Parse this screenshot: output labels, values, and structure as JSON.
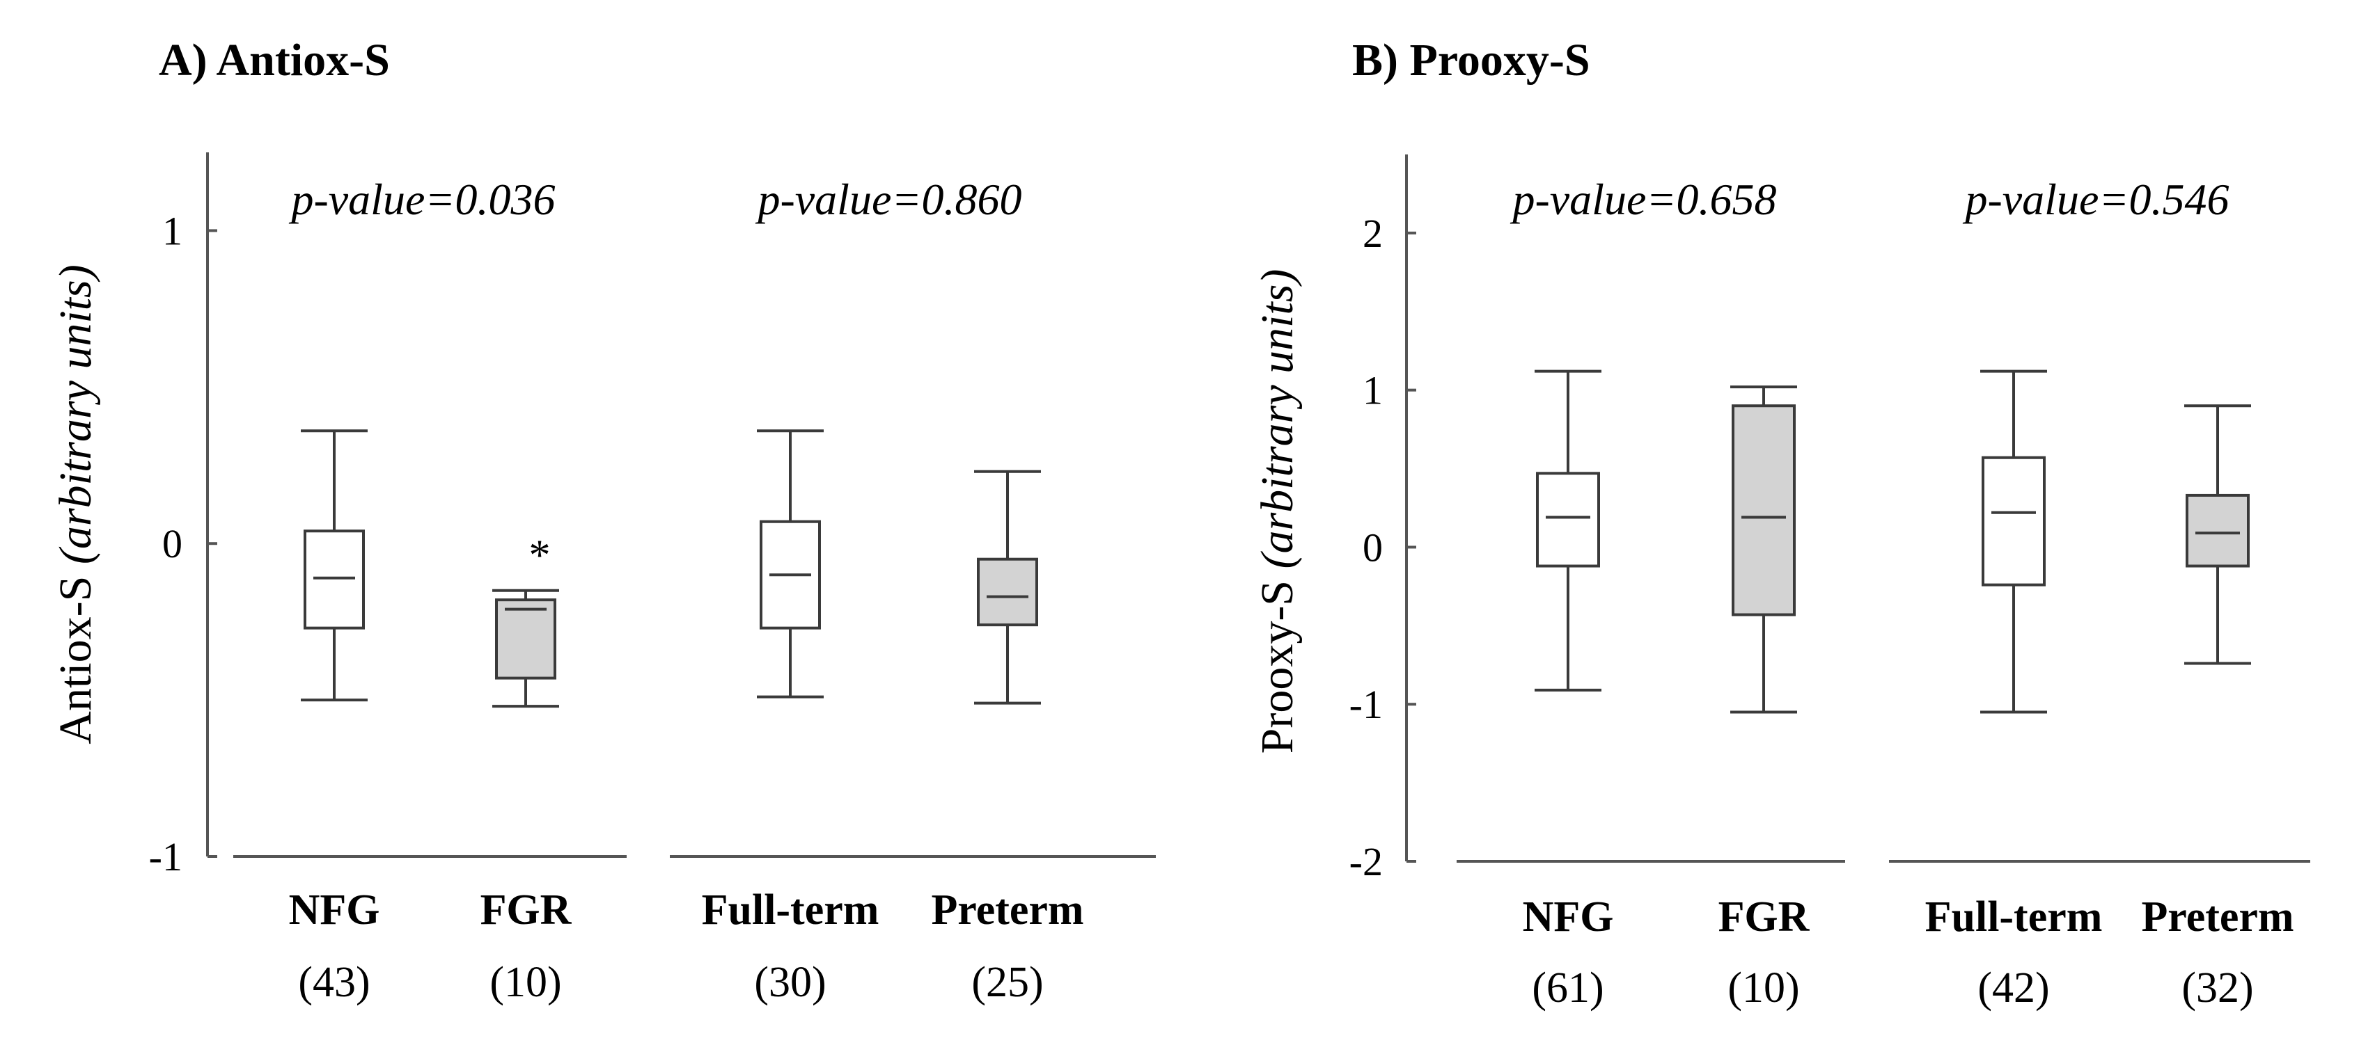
{
  "chart_data": [
    {
      "type": "boxplot",
      "title": "A) Antiox-S",
      "ylabel": "Antiox-S",
      "ylabel_unit": "(arbitrary units)",
      "ylim": [
        -1,
        1.25
      ],
      "yticks": [
        -1,
        0,
        1
      ],
      "ytick_labels": [
        "-1",
        "0",
        "1"
      ],
      "groups": [
        {
          "p_label": "p-value=0.036",
          "categories": [
            {
              "label": "NFG",
              "n_label": "(43)",
              "fill": "#ffffff",
              "min": -0.5,
              "q1": -0.27,
              "median": -0.11,
              "q3": 0.04,
              "max": 0.36,
              "annotation": ""
            },
            {
              "label": "FGR",
              "n_label": "(10)",
              "fill": "#d3d3d3",
              "min": -0.52,
              "q1": -0.43,
              "median": -0.21,
              "q3": -0.18,
              "max": -0.15,
              "annotation": "*"
            }
          ]
        },
        {
          "p_label": "p-value=0.860",
          "categories": [
            {
              "label": "Full-term",
              "n_label": "(30)",
              "fill": "#ffffff",
              "min": -0.49,
              "q1": -0.27,
              "median": -0.1,
              "q3": 0.07,
              "max": 0.36,
              "annotation": ""
            },
            {
              "label": "Preterm",
              "n_label": "(25)",
              "fill": "#d3d3d3",
              "min": -0.51,
              "q1": -0.26,
              "median": -0.17,
              "q3": -0.05,
              "max": 0.23,
              "annotation": ""
            }
          ]
        }
      ]
    },
    {
      "type": "boxplot",
      "title": "B) Prooxy-S",
      "ylabel": "Prooxy-S",
      "ylabel_unit": "(arbitrary units)",
      "ylim": [
        -2,
        2.5
      ],
      "yticks": [
        -2,
        -1,
        0,
        1,
        2
      ],
      "ytick_labels": [
        "-2",
        "-1",
        "0",
        "1",
        "2"
      ],
      "groups": [
        {
          "p_label": "p-value=0.658",
          "categories": [
            {
              "label": "NFG",
              "n_label": "(61)",
              "fill": "#ffffff",
              "min": -0.91,
              "q1": -0.12,
              "median": 0.19,
              "q3": 0.47,
              "max": 1.12,
              "annotation": ""
            },
            {
              "label": "FGR",
              "n_label": "(10)",
              "fill": "#d3d3d3",
              "min": -1.05,
              "q1": -0.43,
              "median": 0.19,
              "q3": 0.9,
              "max": 1.02,
              "annotation": ""
            }
          ]
        },
        {
          "p_label": "p-value=0.546",
          "categories": [
            {
              "label": "Full-term",
              "n_label": "(42)",
              "fill": "#ffffff",
              "min": -1.05,
              "q1": -0.24,
              "median": 0.22,
              "q3": 0.57,
              "max": 1.12,
              "annotation": ""
            },
            {
              "label": "Preterm",
              "n_label": "(32)",
              "fill": "#d3d3d3",
              "min": -0.74,
              "q1": -0.12,
              "median": 0.09,
              "q3": 0.33,
              "max": 0.9,
              "annotation": ""
            }
          ]
        }
      ]
    }
  ]
}
